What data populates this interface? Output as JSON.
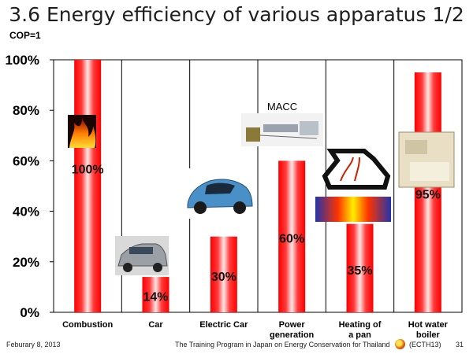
{
  "slide": {
    "title": "3.6 Energy efficiency of various apparatus 1/2",
    "cop_label": "COP=1"
  },
  "chart_data": {
    "type": "bar",
    "categories": [
      "Combustion",
      "Car",
      "Electric Car",
      "Power generation",
      "Heating of a pan",
      "Hot water boiler"
    ],
    "values": [
      100,
      14,
      30,
      60,
      35,
      95
    ],
    "value_labels": [
      "100%",
      "14%",
      "30%",
      "60%",
      "35%",
      "95%"
    ],
    "ylim": [
      0,
      100
    ],
    "yticks": [
      "0%",
      "20%",
      "40%",
      "60%",
      "80%",
      "100%"
    ],
    "annotation": "MACC",
    "bar_color": "#ff0000",
    "grid": false,
    "legend": "none"
  },
  "footer": {
    "date": "Feburary 8, 2013",
    "program": "The Training Program in Japan on Energy Conservation for Thailand",
    "org": "(ECTH13)",
    "page": "31"
  }
}
